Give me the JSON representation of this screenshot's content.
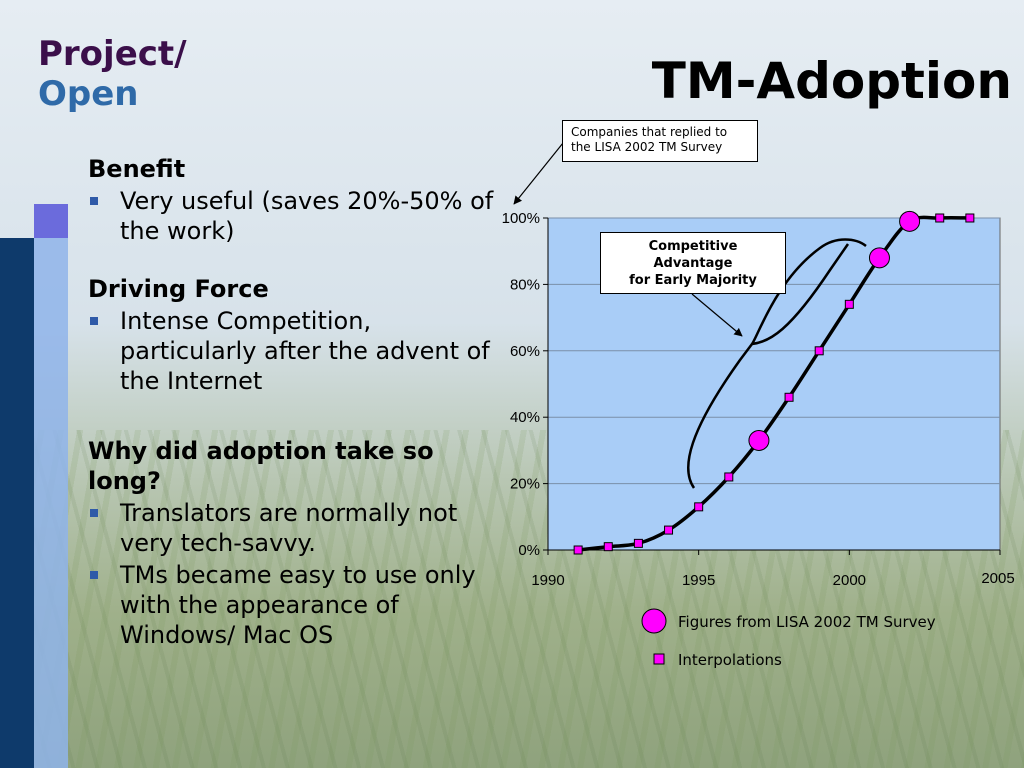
{
  "header": {
    "project_line1": "Project/",
    "project_line2": "Open",
    "title": "TM-Adoption"
  },
  "content": {
    "sections": [
      {
        "heading": "Benefit",
        "bullets": [
          "Very useful (saves 20%-50% of the work)"
        ]
      },
      {
        "heading": "Driving Force",
        "bullets": [
          "Intense Competition, particularly after the advent of the Internet"
        ]
      },
      {
        "heading": "Why did adoption take so long?",
        "bullets": [
          "Translators are normally not very tech-savvy.",
          "TMs became easy to use only with the appearance of Windows/ Mac OS"
        ]
      }
    ]
  },
  "chart_data": {
    "type": "line",
    "x_ticks": [
      "1990",
      "1995",
      "2000",
      "2005"
    ],
    "y_ticks": [
      "0%",
      "20%",
      "40%",
      "60%",
      "80%",
      "100%"
    ],
    "xlim": [
      1990,
      2005
    ],
    "ylim": [
      0,
      100
    ],
    "grid": true,
    "plot_background": "#a9cdf7",
    "series": [
      {
        "name": "Figures from LISA 2002 TM Survey",
        "marker": "circle",
        "color": "#ff00ff",
        "points": [
          [
            1997,
            33
          ],
          [
            2001,
            88
          ],
          [
            2002,
            99
          ]
        ]
      },
      {
        "name": "Interpolations",
        "marker": "square",
        "color": "#ff00ff",
        "points": [
          [
            1991,
            0
          ],
          [
            1992,
            1
          ],
          [
            1993,
            2
          ],
          [
            1994,
            6
          ],
          [
            1995,
            13
          ],
          [
            1996,
            22
          ],
          [
            1998,
            46
          ],
          [
            1999,
            60
          ],
          [
            2000,
            74
          ],
          [
            2003,
            100
          ],
          [
            2004,
            100
          ]
        ]
      }
    ],
    "annotations": {
      "survey_note": [
        "Companies that replied to",
        "the LISA 2002 TM Survey"
      ],
      "advantage_note": [
        "Competitive",
        "Advantage",
        "for Early Majority"
      ]
    }
  }
}
